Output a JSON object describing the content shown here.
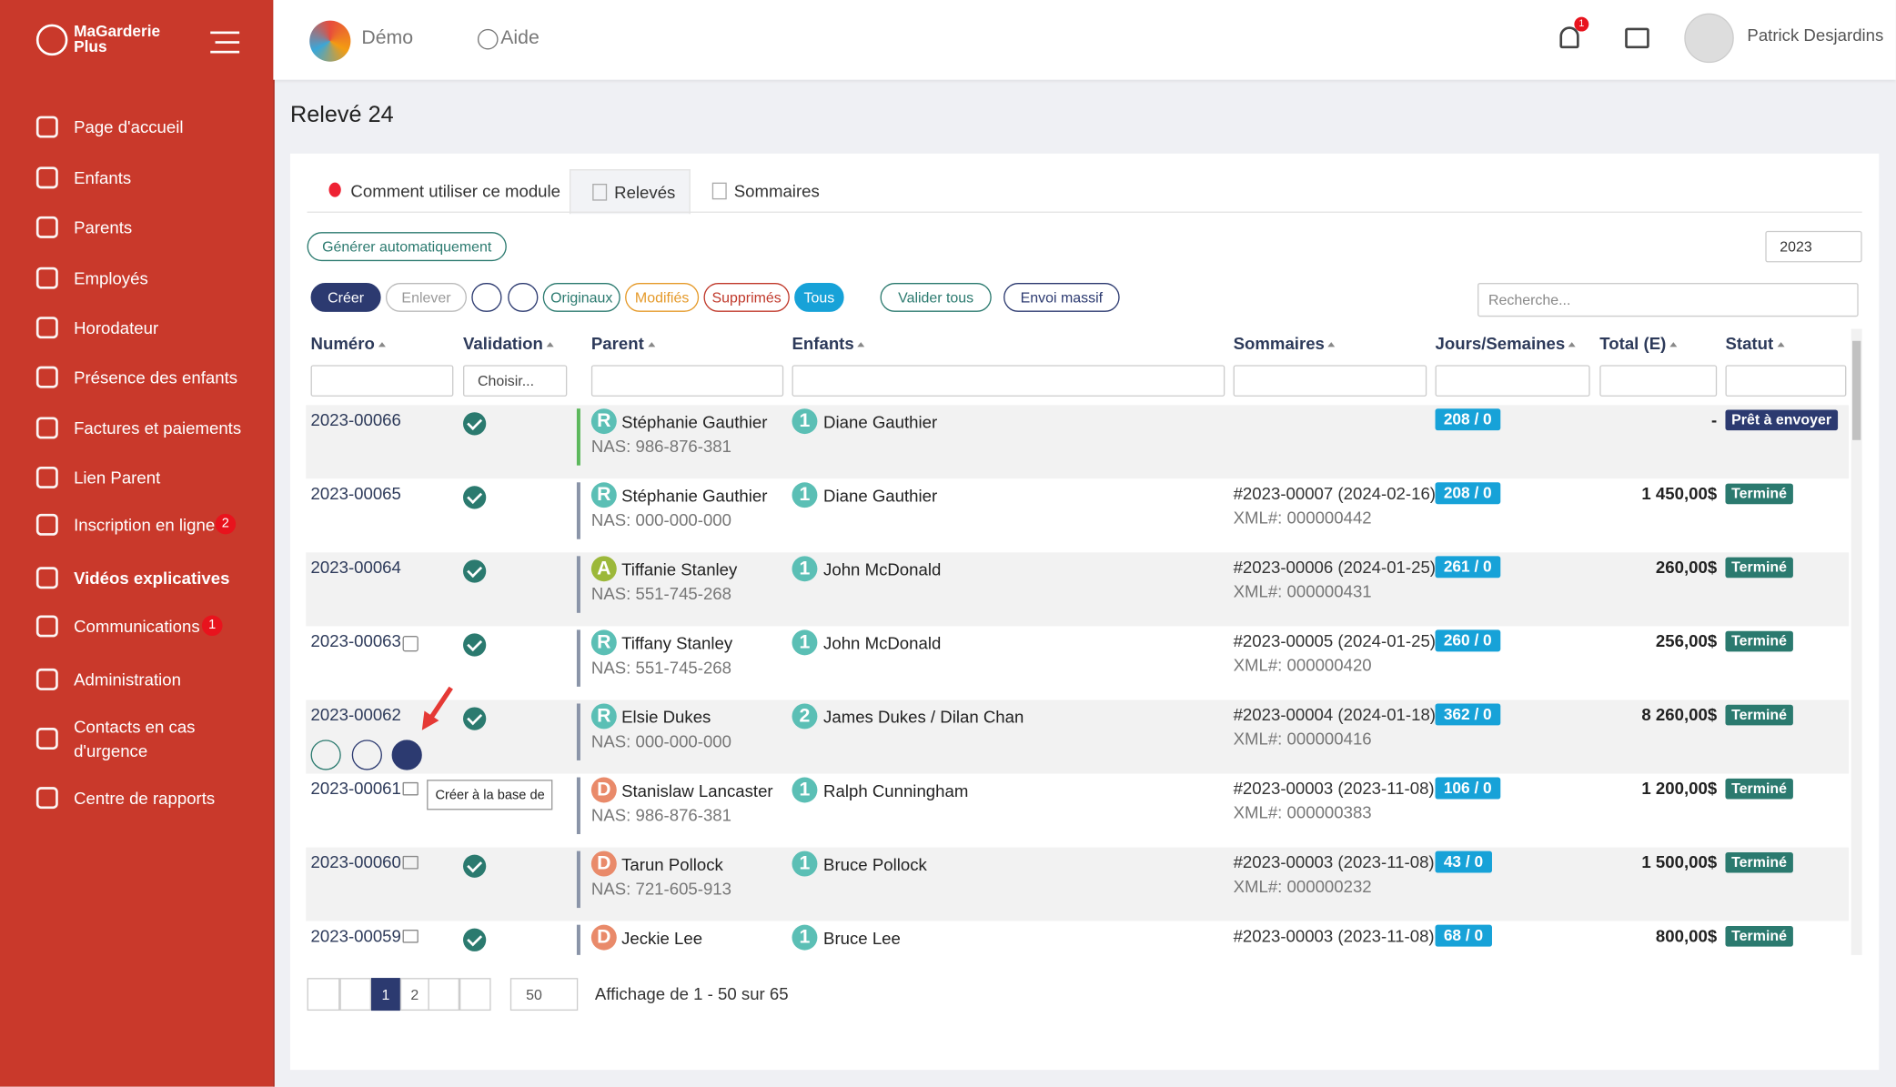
{
  "sidebar": {
    "brand_line1": "MaGarderie",
    "brand_line2": "Plus",
    "items": [
      {
        "label": "Page d'accueil"
      },
      {
        "label": "Enfants"
      },
      {
        "label": "Parents"
      },
      {
        "label": "Employés"
      },
      {
        "label": "Horodateur"
      },
      {
        "label": "Présence des enfants"
      },
      {
        "label": "Factures et paiements"
      },
      {
        "label": "Lien Parent"
      },
      {
        "label": "Inscription en ligne",
        "badge": "2"
      },
      {
        "label": "Vidéos explicatives",
        "bold": true
      },
      {
        "label": "Communications",
        "badge": "1"
      },
      {
        "label": "Administration"
      },
      {
        "label": "Contacts en cas d'urgence"
      },
      {
        "label": "Centre de rapports"
      }
    ]
  },
  "topbar": {
    "org": "Démo",
    "help": "Aide",
    "notification_count": "1",
    "user": "Patrick Desjardins"
  },
  "page_title": "Relevé 24",
  "tabs": [
    "Comment utiliser ce module",
    "Relevés",
    "Sommaires"
  ],
  "generate_button": "Générer automatiquement",
  "year": "2023",
  "toolbar": {
    "buttons": [
      "Créer",
      "Enlever",
      "Originaux",
      "Modifiés",
      "Supprimés",
      "Tous",
      "Valider tous",
      "Envoi massif"
    ],
    "search_placeholder": "Recherche..."
  },
  "table": {
    "columns": [
      "Numéro",
      "Validation",
      "Parent",
      "Enfants",
      "Sommaires",
      "Jours/Semaines",
      "Total (E)",
      "Statut"
    ],
    "filter_select": "Choisir...",
    "rows": [
      {
        "numero": "2023-00066",
        "validated": true,
        "parent_type": "R",
        "parent": "Stéphanie Gauthier",
        "nas": "NAS: 986-876-381",
        "kids_count": "1",
        "enfants": "Diane Gauthier",
        "jours": "208 / 0",
        "total": "-",
        "statut": "Prêt à envoyer"
      },
      {
        "numero": "2023-00065",
        "validated": true,
        "parent_type": "R",
        "parent": "Stéphanie Gauthier",
        "nas": "NAS: 000-000-000",
        "kids_count": "1",
        "enfants": "Diane Gauthier",
        "sommaire": "#2023-00007 (2024-02-16)",
        "xml": "XML#: 000000442",
        "jours": "208 / 0",
        "total": "1 450,00$",
        "statut": "Terminé"
      },
      {
        "numero": "2023-00064",
        "validated": true,
        "parent_type": "A",
        "parent": "Tiffanie Stanley",
        "nas": "NAS: 551-745-268",
        "kids_count": "1",
        "enfants": "John McDonald",
        "sommaire": "#2023-00006 (2024-01-25)",
        "xml": "XML#: 000000431",
        "jours": "261 / 0",
        "total": "260,00$",
        "statut": "Terminé"
      },
      {
        "numero": "2023-00063",
        "icon": "lock",
        "validated": true,
        "parent_type": "R",
        "parent": "Tiffany Stanley",
        "nas": "NAS: 551-745-268",
        "kids_count": "1",
        "enfants": "John McDonald",
        "sommaire": "#2023-00005 (2024-01-25)",
        "xml": "XML#: 000000420",
        "jours": "260 / 0",
        "total": "256,00$",
        "statut": "Terminé"
      },
      {
        "numero": "2023-00062",
        "validated": true,
        "actions": true,
        "parent_type": "R",
        "parent": "Elsie Dukes",
        "nas": "NAS: 000-000-000",
        "kids_count": "2",
        "enfants": "James Dukes / Dilan Chan",
        "sommaire": "#2023-00004 (2024-01-18)",
        "xml": "XML#: 000000416",
        "jours": "362 / 0",
        "total": "8 260,00$",
        "statut": "Terminé"
      },
      {
        "numero": "2023-00061",
        "icon": "mail",
        "validated": false,
        "parent_type": "D",
        "parent": "Stanislaw Lancaster",
        "nas": "NAS: 986-876-381",
        "kids_count": "1",
        "enfants": "Ralph Cunningham",
        "sommaire": "#2023-00003 (2023-11-08)",
        "xml": "XML#: 000000383",
        "jours": "106 / 0",
        "total": "1 200,00$",
        "statut": "Terminé"
      },
      {
        "numero": "2023-00060",
        "icon": "mail",
        "validated": true,
        "parent_type": "D",
        "parent": "Tarun Pollock",
        "nas": "NAS: 721-605-913",
        "kids_count": "1",
        "enfants": "Bruce Pollock",
        "sommaire": "#2023-00003 (2023-11-08)",
        "xml": "XML#: 000000232",
        "jours": "43 / 0",
        "total": "1 500,00$",
        "statut": "Terminé"
      },
      {
        "numero": "2023-00059",
        "icon": "mail",
        "validated": true,
        "parent_type": "D",
        "parent": "Jeckie Lee",
        "kids_count": "1",
        "enfants": "Bruce Lee",
        "sommaire": "#2023-00003 (2023-11-08)",
        "jours": "68 / 0",
        "total": "800,00$",
        "statut": "Terminé"
      }
    ]
  },
  "tooltip": "Créer à la base de",
  "pagination": {
    "pages": [
      "1",
      "2"
    ],
    "per_page": "50",
    "summary": "Affichage de 1 - 50 sur 65"
  }
}
